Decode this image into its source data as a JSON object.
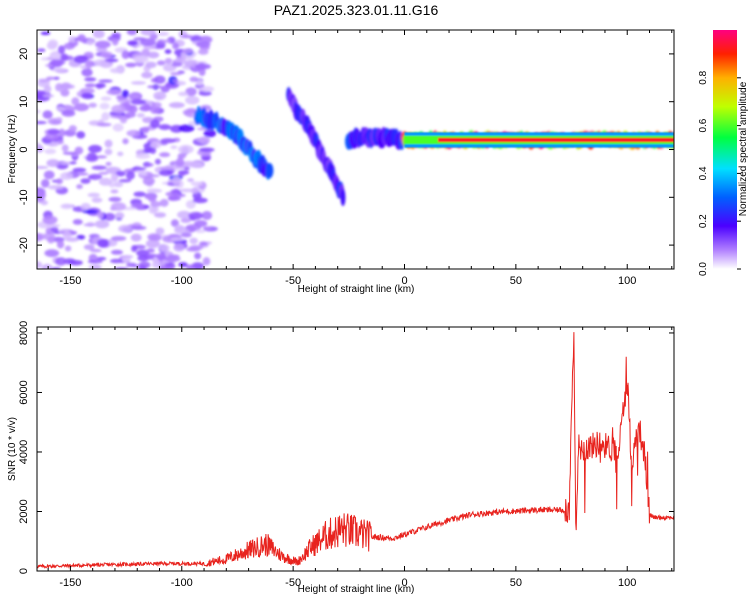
{
  "title": "PAZ1.2025.323.01.11.G16",
  "chart_data": [
    {
      "type": "heatmap",
      "name": "spectrogram",
      "xlabel": "Height of straight line (km)",
      "ylabel": "Frequency (Hz)",
      "xlim": [
        -165,
        121
      ],
      "ylim": [
        -25,
        25
      ],
      "xticks": [
        -150,
        -100,
        -50,
        0,
        50,
        100
      ],
      "yticks": [
        -20,
        -10,
        0,
        10,
        20
      ],
      "colorbar": {
        "label": "Normalized spectral amplitude",
        "range": [
          0,
          1
        ],
        "ticks": [
          0.0,
          0.2,
          0.4,
          0.6,
          0.8
        ]
      },
      "features": [
        {
          "name": "noise region",
          "x_range": [
            -165,
            -95
          ],
          "f_range": [
            -25,
            25
          ],
          "amplitude": 0.1
        },
        {
          "name": "upper descending track",
          "points": [
            [
              -93,
              7
            ],
            [
              -85,
              6
            ],
            [
              -75,
              3
            ],
            [
              -68,
              -1
            ],
            [
              -60,
              -5
            ]
          ],
          "amplitude": 0.3
        },
        {
          "name": "lower descending track",
          "points": [
            [
              -52,
              11
            ],
            [
              -45,
              6
            ],
            [
              -38,
              0
            ],
            [
              -32,
              -6
            ],
            [
              -27,
              -10
            ]
          ],
          "amplitude": 0.22
        },
        {
          "name": "converging track",
          "points": [
            [
              -25,
              2
            ],
            [
              -18,
              2.5
            ],
            [
              -10,
              2.5
            ],
            [
              0,
              2
            ]
          ],
          "amplitude": 0.25
        },
        {
          "name": "main carrier",
          "points": [
            [
              0,
              2
            ],
            [
              50,
              2
            ],
            [
              121,
              2
            ]
          ],
          "amplitude": 0.95
        }
      ]
    },
    {
      "type": "line",
      "name": "snr",
      "xlabel": "Height of straight line (km)",
      "ylabel": "SNR (10 * v/v)",
      "xlim": [
        -165,
        121
      ],
      "ylim": [
        0,
        8200
      ],
      "xticks": [
        -150,
        -100,
        -50,
        0,
        50,
        100
      ],
      "yticks": [
        0,
        2000,
        4000,
        6000,
        8000
      ],
      "color": "#e8231e",
      "series": [
        {
          "name": "SNR",
          "x": [
            -165,
            -140,
            -110,
            -90,
            -80,
            -70,
            -62,
            -55,
            -48,
            -42,
            -35,
            -28,
            -22,
            -15,
            -5,
            5,
            15,
            30,
            45,
            60,
            72,
            74,
            75,
            76,
            77,
            78,
            80,
            88,
            96,
            100,
            102,
            105,
            108,
            110,
            112,
            121
          ],
          "y": [
            150,
            200,
            250,
            250,
            400,
            700,
            900,
            500,
            300,
            800,
            1200,
            1400,
            1300,
            1150,
            1100,
            1350,
            1600,
            1900,
            2000,
            2050,
            2050,
            2000,
            5500,
            8000,
            1000,
            4200,
            4100,
            4300,
            4000,
            6500,
            3500,
            5000,
            3800,
            1900,
            1800,
            1800
          ]
        }
      ]
    }
  ]
}
